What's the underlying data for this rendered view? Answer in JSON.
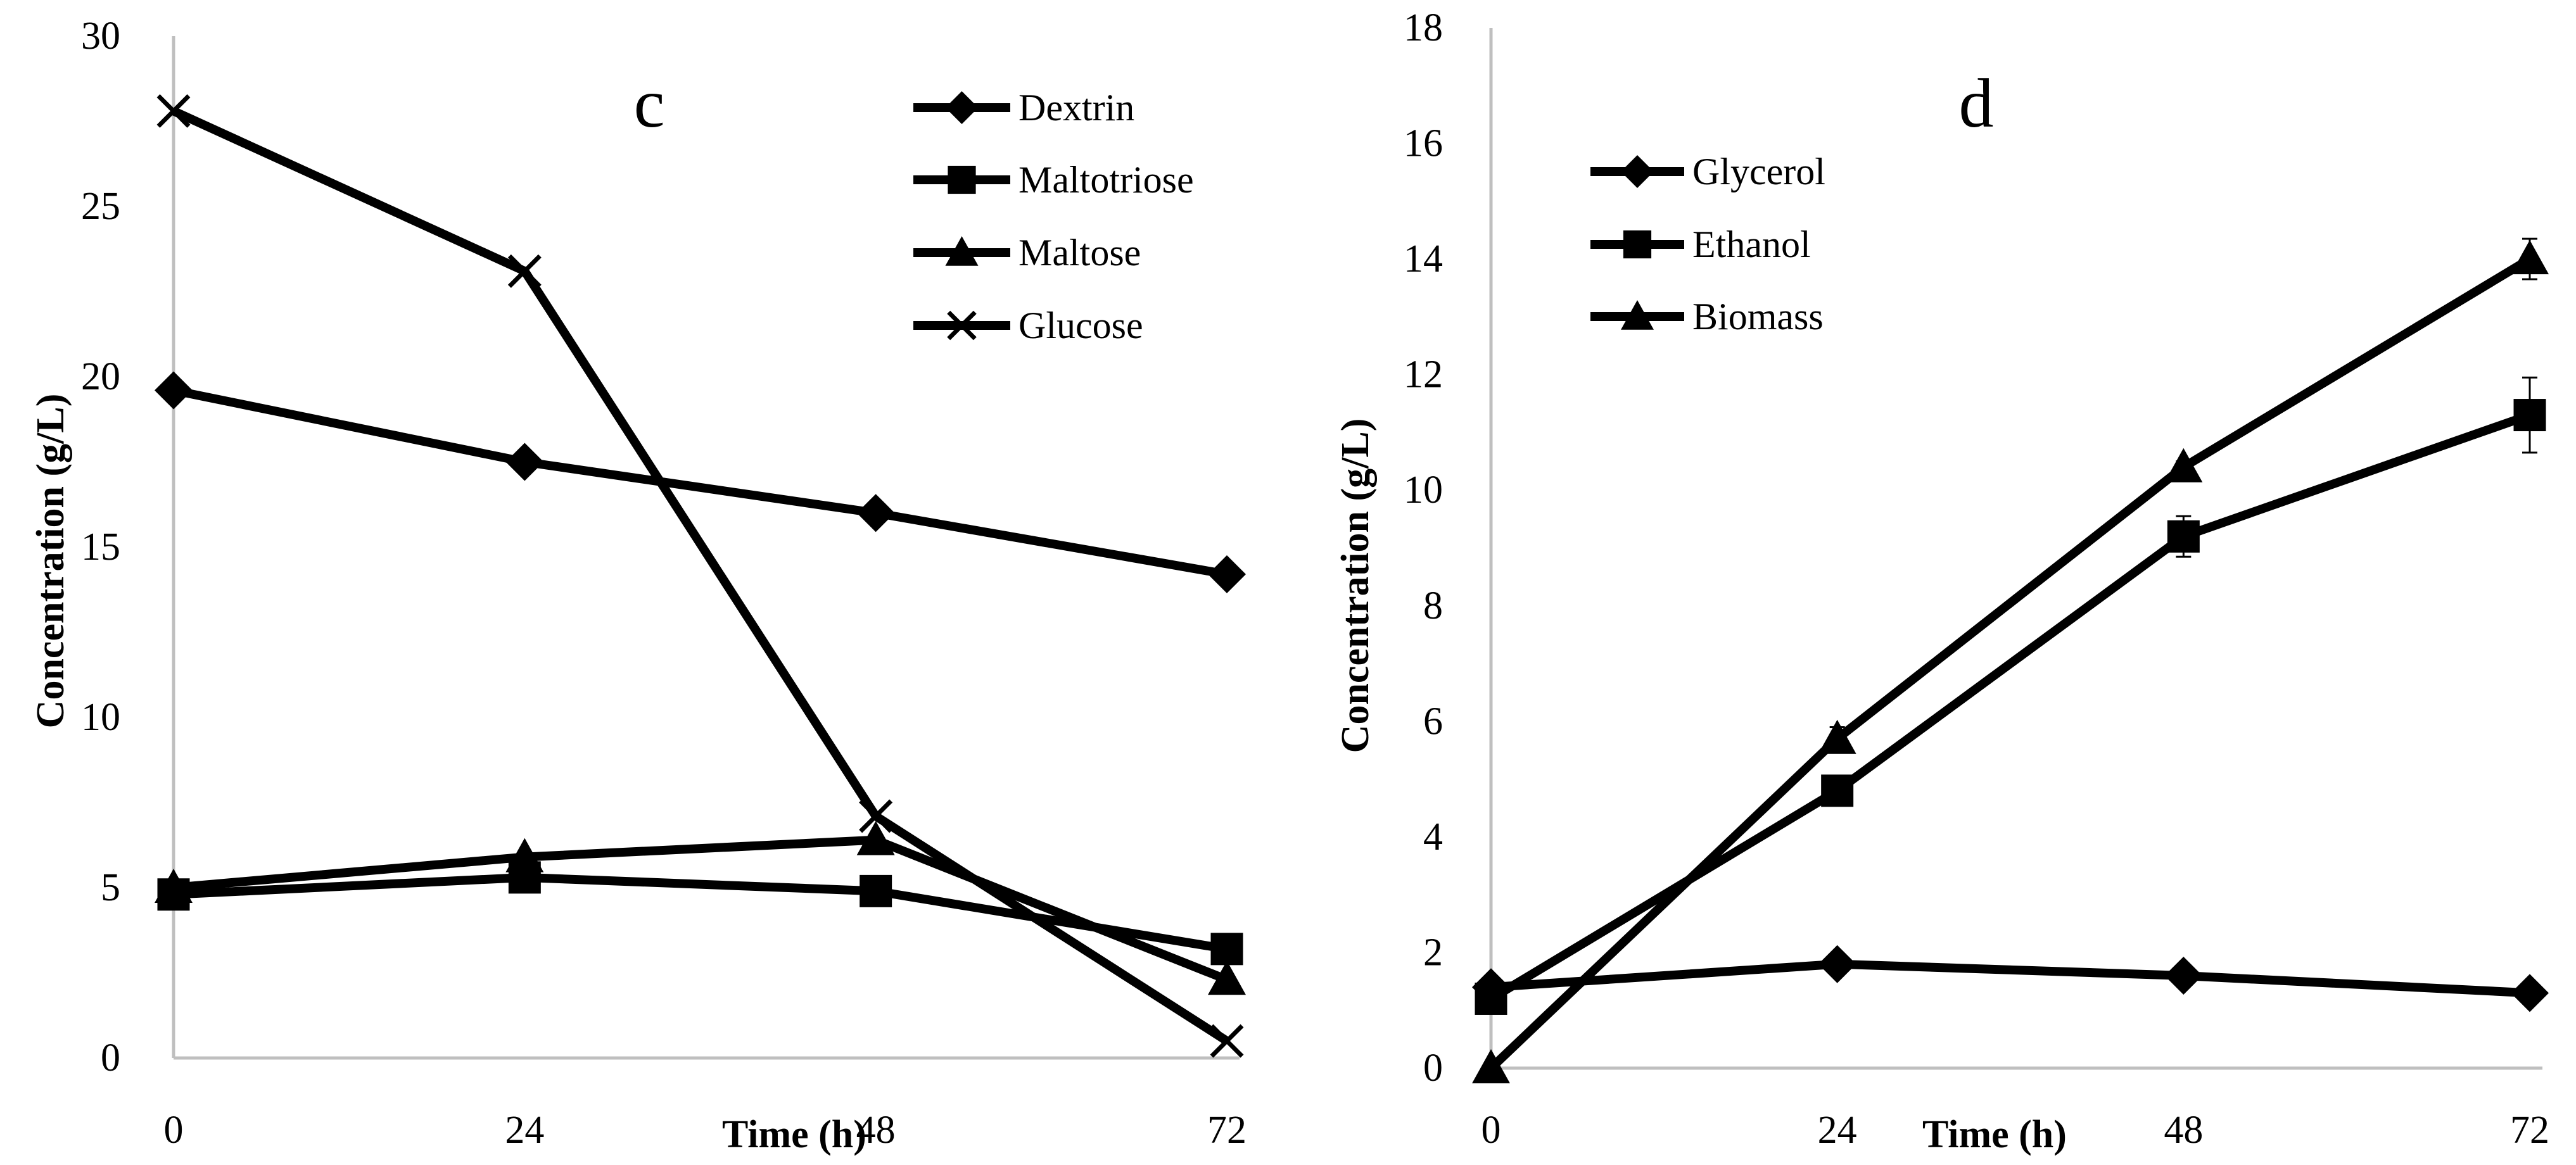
{
  "chart_data": [
    {
      "type": "line",
      "panel_label": "c",
      "xlabel": "Time (h)",
      "ylabel": "Concentration (g/L)",
      "x": [
        0,
        24,
        48,
        72
      ],
      "x_ticks": [
        "0",
        "24",
        "48",
        "72"
      ],
      "ylim": [
        0,
        30
      ],
      "y_ticks": [
        "0",
        "5",
        "10",
        "15",
        "20",
        "25",
        "30"
      ],
      "grid": false,
      "legend_position": "top-right",
      "series": [
        {
          "name": "Dextrin",
          "marker": "diamond",
          "values": [
            19.6,
            17.5,
            16.0,
            14.2
          ]
        },
        {
          "name": "Maltotriose",
          "marker": "square",
          "values": [
            4.8,
            5.3,
            4.9,
            3.2
          ]
        },
        {
          "name": "Maltose",
          "marker": "triangle",
          "values": [
            5.0,
            5.9,
            6.4,
            2.3
          ]
        },
        {
          "name": "Glucose",
          "marker": "x",
          "values": [
            27.8,
            23.1,
            7.1,
            0.5
          ]
        }
      ]
    },
    {
      "type": "line",
      "panel_label": "d",
      "xlabel": "Time (h)",
      "ylabel": "Concentration (g/L)",
      "x": [
        0,
        24,
        48,
        72
      ],
      "x_ticks": [
        "0",
        "24",
        "48",
        "72"
      ],
      "ylim": [
        0,
        18
      ],
      "y_ticks": [
        "0",
        "2",
        "4",
        "6",
        "8",
        "10",
        "12",
        "14",
        "16",
        "18"
      ],
      "grid": false,
      "legend_position": "top-left",
      "series": [
        {
          "name": "Glycerol",
          "marker": "diamond",
          "values": [
            1.4,
            1.8,
            1.6,
            1.3
          ],
          "errors": [
            0.1,
            0.1,
            0.05,
            0.05
          ]
        },
        {
          "name": "Ethanol",
          "marker": "square",
          "values": [
            1.2,
            4.8,
            9.2,
            11.3
          ],
          "errors": [
            0.1,
            0.1,
            0.35,
            0.65
          ]
        },
        {
          "name": "Biomass",
          "marker": "triangle",
          "values": [
            0.0,
            5.7,
            10.4,
            14.0
          ],
          "errors": [
            0,
            0.2,
            0.1,
            0.35
          ]
        }
      ]
    }
  ]
}
